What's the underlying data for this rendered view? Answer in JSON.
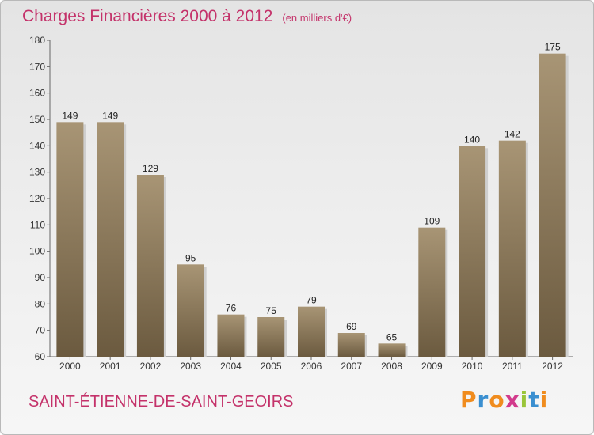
{
  "title": "Charges Financières 2000 à 2012",
  "unit": "(en milliers d'€)",
  "commune": "SAINT-ÉTIENNE-DE-SAINT-GEOIRS",
  "logo": {
    "letters": [
      "P",
      "r",
      "o",
      "x",
      "i",
      "t",
      "i"
    ],
    "colors": [
      "#f08c1e",
      "#3a8fd0",
      "#f08c1e",
      "#d23a8c",
      "#9ac53a",
      "#3a8fd0",
      "#f08c1e"
    ]
  },
  "colors": {
    "bar_light": "#a89575",
    "bar_dark": "#6b5a3f",
    "accent": "#c4326a"
  },
  "chart_data": {
    "type": "bar",
    "categories": [
      "2000",
      "2001",
      "2002",
      "2003",
      "2004",
      "2005",
      "2006",
      "2007",
      "2008",
      "2009",
      "2010",
      "2011",
      "2012"
    ],
    "values": [
      149,
      149,
      129,
      95,
      76,
      75,
      79,
      69,
      65,
      109,
      140,
      142,
      175
    ],
    "ylim": [
      60,
      180
    ],
    "yticks": [
      60,
      70,
      80,
      90,
      100,
      110,
      120,
      130,
      140,
      150,
      160,
      170,
      180
    ],
    "grid": false
  }
}
